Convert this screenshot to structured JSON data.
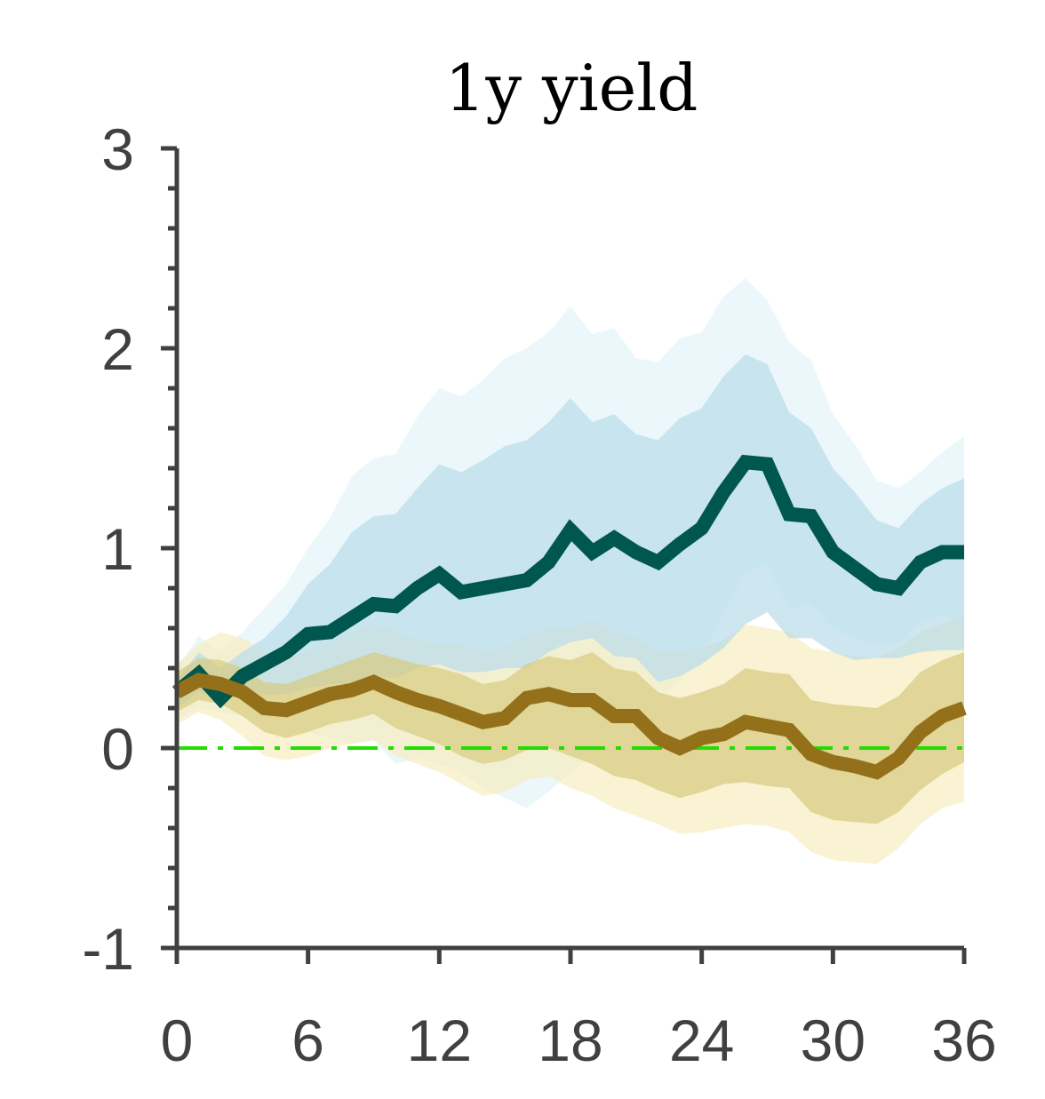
{
  "chart_data": {
    "type": "area",
    "title": "1y yield",
    "xlabel": "",
    "ylabel": "",
    "xlim": [
      0,
      36
    ],
    "ylim": [
      -1,
      3
    ],
    "xticks": [
      0,
      6,
      12,
      18,
      24,
      30,
      36
    ],
    "xtick_labels": [
      "0",
      "6",
      "12",
      "18",
      "24",
      "30",
      "36"
    ],
    "yticks": [
      -1,
      0,
      1,
      2,
      3
    ],
    "ytick_labels": [
      "-1",
      "0",
      "1",
      "2",
      "3"
    ],
    "grid": false,
    "legend": "none",
    "zero_line": {
      "y": 0,
      "color": "#22dd00",
      "style": "dash-dot"
    },
    "x": [
      0,
      1,
      2,
      3,
      4,
      5,
      6,
      7,
      8,
      9,
      10,
      11,
      12,
      13,
      14,
      15,
      16,
      17,
      18,
      19,
      20,
      21,
      22,
      23,
      24,
      25,
      26,
      27,
      28,
      29,
      30,
      31,
      32,
      33,
      34,
      35,
      36
    ],
    "series": [
      {
        "color": "#00574f",
        "inner_band_color": "#b8dcea",
        "outer_band_color": "#e4f3f9",
        "values": [
          0.28,
          0.37,
          0.25,
          0.36,
          0.42,
          0.48,
          0.57,
          0.58,
          0.65,
          0.72,
          0.71,
          0.8,
          0.87,
          0.78,
          0.8,
          0.82,
          0.84,
          0.93,
          1.09,
          0.98,
          1.05,
          0.98,
          0.93,
          1.02,
          1.1,
          1.28,
          1.43,
          1.42,
          1.17,
          1.16,
          0.98,
          0.9,
          0.82,
          0.8,
          0.93,
          0.98,
          0.98
        ],
        "inner_lower": [
          0.2,
          0.28,
          0.25,
          0.26,
          0.27,
          0.27,
          0.3,
          0.32,
          0.32,
          0.36,
          0.35,
          0.4,
          0.42,
          0.38,
          0.38,
          0.4,
          0.4,
          0.48,
          0.53,
          0.55,
          0.46,
          0.45,
          0.33,
          0.36,
          0.42,
          0.5,
          0.62,
          0.68,
          0.55,
          0.55,
          0.48,
          0.44,
          0.45,
          0.45,
          0.48,
          0.49,
          0.49
        ],
        "inner_upper": [
          0.34,
          0.48,
          0.4,
          0.48,
          0.55,
          0.66,
          0.82,
          0.92,
          1.08,
          1.16,
          1.17,
          1.3,
          1.42,
          1.38,
          1.44,
          1.51,
          1.54,
          1.63,
          1.75,
          1.63,
          1.67,
          1.57,
          1.54,
          1.65,
          1.7,
          1.86,
          1.97,
          1.92,
          1.68,
          1.6,
          1.4,
          1.28,
          1.14,
          1.1,
          1.22,
          1.3,
          1.35
        ],
        "outer_lower": [
          0.14,
          0.2,
          0.18,
          0.16,
          0.12,
          0.08,
          0.08,
          0.05,
          0.02,
          0.04,
          -0.08,
          -0.05,
          -0.08,
          -0.12,
          -0.2,
          -0.25,
          -0.3,
          -0.22,
          -0.12,
          -0.04,
          -0.03,
          0.1,
          0.22,
          0.34,
          0.45,
          0.68,
          0.88,
          0.92,
          0.7,
          0.72,
          0.6,
          0.55,
          0.52,
          0.52,
          0.64,
          0.66,
          0.64
        ],
        "outer_upper": [
          0.4,
          0.56,
          0.48,
          0.58,
          0.7,
          0.82,
          1.0,
          1.15,
          1.36,
          1.45,
          1.47,
          1.66,
          1.8,
          1.76,
          1.84,
          1.95,
          2.0,
          2.08,
          2.21,
          2.07,
          2.1,
          1.95,
          1.93,
          2.05,
          2.08,
          2.26,
          2.35,
          2.24,
          2.03,
          1.94,
          1.67,
          1.52,
          1.34,
          1.3,
          1.38,
          1.48,
          1.56
        ]
      },
      {
        "color": "#94701a",
        "inner_band_color": "#d7cb7f",
        "outer_band_color": "#f7ecc0",
        "values": [
          0.28,
          0.34,
          0.32,
          0.28,
          0.2,
          0.19,
          0.23,
          0.27,
          0.29,
          0.33,
          0.28,
          0.24,
          0.21,
          0.17,
          0.13,
          0.15,
          0.25,
          0.27,
          0.24,
          0.24,
          0.16,
          0.16,
          0.05,
          0.0,
          0.05,
          0.07,
          0.13,
          0.11,
          0.09,
          -0.03,
          -0.07,
          -0.09,
          -0.12,
          -0.05,
          0.08,
          0.16,
          0.2
        ],
        "inner_lower": [
          0.18,
          0.24,
          0.22,
          0.16,
          0.08,
          0.05,
          0.08,
          0.12,
          0.14,
          0.17,
          0.1,
          0.06,
          0.02,
          -0.04,
          -0.08,
          -0.06,
          -0.01,
          0.0,
          -0.04,
          -0.08,
          -0.14,
          -0.16,
          -0.21,
          -0.25,
          -0.22,
          -0.18,
          -0.17,
          -0.19,
          -0.2,
          -0.32,
          -0.36,
          -0.37,
          -0.38,
          -0.32,
          -0.21,
          -0.13,
          -0.07
        ],
        "inner_upper": [
          0.38,
          0.45,
          0.44,
          0.4,
          0.33,
          0.32,
          0.36,
          0.4,
          0.44,
          0.48,
          0.45,
          0.42,
          0.4,
          0.37,
          0.32,
          0.34,
          0.42,
          0.46,
          0.44,
          0.48,
          0.4,
          0.38,
          0.28,
          0.25,
          0.28,
          0.32,
          0.4,
          0.38,
          0.37,
          0.24,
          0.22,
          0.21,
          0.2,
          0.26,
          0.38,
          0.44,
          0.48
        ],
        "outer_lower": [
          0.12,
          0.18,
          0.14,
          0.06,
          -0.04,
          -0.06,
          -0.04,
          0.0,
          0.02,
          0.04,
          -0.04,
          -0.08,
          -0.12,
          -0.18,
          -0.24,
          -0.22,
          -0.16,
          -0.14,
          -0.2,
          -0.24,
          -0.3,
          -0.34,
          -0.38,
          -0.43,
          -0.42,
          -0.4,
          -0.38,
          -0.39,
          -0.42,
          -0.52,
          -0.56,
          -0.57,
          -0.58,
          -0.5,
          -0.38,
          -0.3,
          -0.27
        ],
        "outer_upper": [
          0.42,
          0.52,
          0.58,
          0.55,
          0.48,
          0.46,
          0.48,
          0.53,
          0.58,
          0.62,
          0.58,
          0.54,
          0.52,
          0.52,
          0.48,
          0.5,
          0.57,
          0.6,
          0.6,
          0.64,
          0.58,
          0.55,
          0.48,
          0.48,
          0.5,
          0.54,
          0.62,
          0.6,
          0.58,
          0.5,
          0.48,
          0.46,
          0.45,
          0.5,
          0.58,
          0.62,
          0.66
        ]
      }
    ]
  }
}
